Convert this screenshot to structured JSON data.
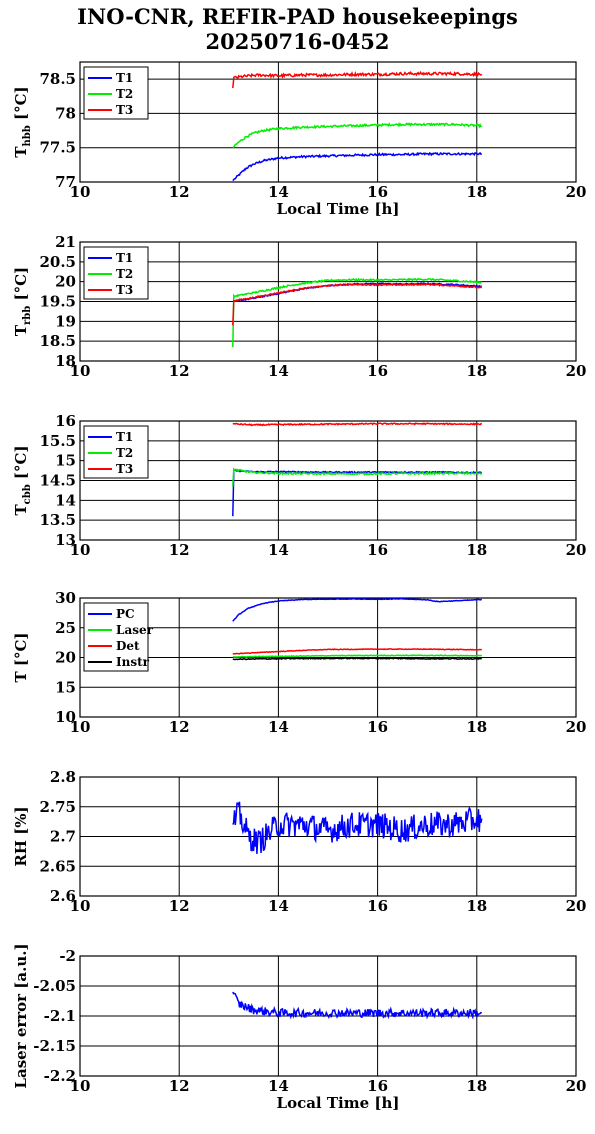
{
  "title_line1": "INO-CNR, REFIR-PAD housekeepings",
  "title_line2": "20250716-0452",
  "chart_data": [
    {
      "type": "line",
      "ylabel": "T",
      "ylabel_sub": "hbb",
      "ylabel_unit": "[°C]",
      "xlabel": "Local Time [h]",
      "xlim": [
        10,
        20
      ],
      "ylim": [
        77,
        78.75
      ],
      "xticks": [
        "10",
        "12",
        "14",
        "16",
        "18",
        "20"
      ],
      "yticks": [
        {
          "v": 77,
          "label": "77"
        },
        {
          "v": 77.5,
          "label": "77.5"
        },
        {
          "v": 78,
          "label": "78"
        },
        {
          "v": 78.5,
          "label": "78.5"
        }
      ],
      "grid": true,
      "legend": "top-left",
      "series": [
        {
          "name": "T1",
          "color": "#0000ff",
          "noise": 0.015,
          "points": [
            [
              13.08,
              77.02
            ],
            [
              13.2,
              77.1
            ],
            [
              13.35,
              77.2
            ],
            [
              13.5,
              77.26
            ],
            [
              13.7,
              77.31
            ],
            [
              14,
              77.35
            ],
            [
              14.5,
              77.37
            ],
            [
              15,
              77.38
            ],
            [
              15.5,
              77.39
            ],
            [
              16,
              77.4
            ],
            [
              16.5,
              77.4
            ],
            [
              17,
              77.41
            ],
            [
              17.5,
              77.41
            ],
            [
              18.1,
              77.41
            ]
          ]
        },
        {
          "name": "T2",
          "color": "#00ee00",
          "noise": 0.015,
          "points": [
            [
              13.08,
              77.5
            ],
            [
              13.2,
              77.58
            ],
            [
              13.35,
              77.66
            ],
            [
              13.5,
              77.71
            ],
            [
              13.7,
              77.75
            ],
            [
              14,
              77.78
            ],
            [
              14.5,
              77.8
            ],
            [
              15,
              77.81
            ],
            [
              15.5,
              77.82
            ],
            [
              16,
              77.83
            ],
            [
              16.5,
              77.84
            ],
            [
              17,
              77.84
            ],
            [
              17.5,
              77.84
            ],
            [
              18.1,
              77.82
            ]
          ]
        },
        {
          "name": "T3",
          "color": "#ff0000",
          "noise": 0.02,
          "points": [
            [
              13.08,
              78.37
            ],
            [
              13.1,
              78.52
            ],
            [
              13.3,
              78.54
            ],
            [
              13.6,
              78.56
            ],
            [
              14,
              78.55
            ],
            [
              14.5,
              78.56
            ],
            [
              15,
              78.56
            ],
            [
              15.5,
              78.57
            ],
            [
              16,
              78.57
            ],
            [
              16.5,
              78.58
            ],
            [
              17,
              78.58
            ],
            [
              17.5,
              78.58
            ],
            [
              18.1,
              78.57
            ]
          ]
        }
      ]
    },
    {
      "type": "line",
      "ylabel": "T",
      "ylabel_sub": "rbb",
      "ylabel_unit": "[°C]",
      "xlabel": "",
      "xlim": [
        10,
        20
      ],
      "ylim": [
        18,
        21
      ],
      "xticks": [
        "10",
        "12",
        "14",
        "16",
        "18",
        "20"
      ],
      "yticks": [
        {
          "v": 18,
          "label": "18"
        },
        {
          "v": 18.5,
          "label": "18.5"
        },
        {
          "v": 19,
          "label": "19"
        },
        {
          "v": 19.5,
          "label": "19.5"
        },
        {
          "v": 20,
          "label": "20"
        },
        {
          "v": 20.5,
          "label": "20.5"
        },
        {
          "v": 21,
          "label": "21"
        }
      ],
      "grid": true,
      "legend": "top-left",
      "series": [
        {
          "name": "T1",
          "color": "#0000ff",
          "noise": 0.015,
          "points": [
            [
              13.08,
              19.5
            ],
            [
              13.5,
              19.58
            ],
            [
              14,
              19.7
            ],
            [
              14.5,
              19.82
            ],
            [
              15,
              19.9
            ],
            [
              15.5,
              19.94
            ],
            [
              16,
              19.95
            ],
            [
              16.5,
              19.94
            ],
            [
              17,
              19.95
            ],
            [
              17.5,
              19.93
            ],
            [
              18.1,
              19.88
            ]
          ]
        },
        {
          "name": "T2",
          "color": "#00ee00",
          "noise": 0.02,
          "points": [
            [
              13.08,
              18.35
            ],
            [
              13.1,
              19.63
            ],
            [
              13.5,
              19.72
            ],
            [
              14,
              19.85
            ],
            [
              14.5,
              19.96
            ],
            [
              15,
              20.03
            ],
            [
              15.5,
              20.05
            ],
            [
              16,
              20.04
            ],
            [
              16.5,
              20.05
            ],
            [
              17,
              20.06
            ],
            [
              17.5,
              20.03
            ],
            [
              18.1,
              19.98
            ]
          ]
        },
        {
          "name": "T3",
          "color": "#ff0000",
          "noise": 0.015,
          "points": [
            [
              13.08,
              18.9
            ],
            [
              13.1,
              19.52
            ],
            [
              13.5,
              19.6
            ],
            [
              14,
              19.72
            ],
            [
              14.5,
              19.83
            ],
            [
              15,
              19.9
            ],
            [
              15.5,
              19.93
            ],
            [
              16,
              19.92
            ],
            [
              16.5,
              19.92
            ],
            [
              17,
              19.93
            ],
            [
              17.5,
              19.9
            ],
            [
              18.1,
              19.85
            ]
          ]
        }
      ]
    },
    {
      "type": "line",
      "ylabel": "T",
      "ylabel_sub": "cbb",
      "ylabel_unit": "[°C]",
      "xlabel": "",
      "xlim": [
        10,
        20
      ],
      "ylim": [
        13,
        16
      ],
      "xticks": [
        "10",
        "12",
        "14",
        "16",
        "18",
        "20"
      ],
      "yticks": [
        {
          "v": 13,
          "label": "13"
        },
        {
          "v": 13.5,
          "label": "13.5"
        },
        {
          "v": 14,
          "label": "14"
        },
        {
          "v": 14.5,
          "label": "14.5"
        },
        {
          "v": 15,
          "label": "15"
        },
        {
          "v": 15.5,
          "label": "15.5"
        },
        {
          "v": 16,
          "label": "16"
        }
      ],
      "grid": true,
      "legend": "top-left",
      "series": [
        {
          "name": "T1",
          "color": "#0000ff",
          "noise": 0.015,
          "points": [
            [
              13.08,
              13.6
            ],
            [
              13.1,
              14.75
            ],
            [
              13.5,
              14.72
            ],
            [
              14,
              14.72
            ],
            [
              15,
              14.71
            ],
            [
              16,
              14.71
            ],
            [
              17,
              14.71
            ],
            [
              18.1,
              14.7
            ]
          ]
        },
        {
          "name": "T2",
          "color": "#00ee00",
          "noise": 0.02,
          "points": [
            [
              13.08,
              14.35
            ],
            [
              13.1,
              14.78
            ],
            [
              13.5,
              14.7
            ],
            [
              14,
              14.68
            ],
            [
              15,
              14.67
            ],
            [
              16,
              14.67
            ],
            [
              17,
              14.68
            ],
            [
              18.1,
              14.68
            ]
          ]
        },
        {
          "name": "T3",
          "color": "#ff0000",
          "noise": 0.015,
          "points": [
            [
              13.08,
              15.93
            ],
            [
              13.5,
              15.9
            ],
            [
              14,
              15.91
            ],
            [
              15,
              15.92
            ],
            [
              16,
              15.93
            ],
            [
              17,
              15.93
            ],
            [
              18.1,
              15.92
            ]
          ]
        }
      ]
    },
    {
      "type": "line",
      "ylabel": "T [°C]",
      "ylabel_sub": "",
      "ylabel_unit": "",
      "xlabel": "",
      "xlim": [
        10,
        20
      ],
      "ylim": [
        10,
        30
      ],
      "xticks": [
        "10",
        "12",
        "14",
        "16",
        "18",
        "20"
      ],
      "yticks": [
        {
          "v": 10,
          "label": "10"
        },
        {
          "v": 15,
          "label": "15"
        },
        {
          "v": 20,
          "label": "20"
        },
        {
          "v": 25,
          "label": "25"
        },
        {
          "v": 30,
          "label": "30"
        }
      ],
      "grid": true,
      "legend": "top-left",
      "series": [
        {
          "name": "PC",
          "color": "#0000ff",
          "noise": 0.05,
          "points": [
            [
              13.08,
              26.1
            ],
            [
              13.2,
              27.2
            ],
            [
              13.4,
              28.3
            ],
            [
              13.7,
              29.1
            ],
            [
              14,
              29.5
            ],
            [
              14.5,
              29.75
            ],
            [
              15,
              29.8
            ],
            [
              15.5,
              29.85
            ],
            [
              16,
              29.8
            ],
            [
              16.5,
              29.85
            ],
            [
              17,
              29.7
            ],
            [
              17.2,
              29.4
            ],
            [
              17.5,
              29.5
            ],
            [
              18,
              29.7
            ],
            [
              18.1,
              29.75
            ]
          ]
        },
        {
          "name": "Laser",
          "color": "#00ee00",
          "noise": 0.05,
          "points": [
            [
              13.08,
              20.1
            ],
            [
              14,
              20.2
            ],
            [
              15,
              20.3
            ],
            [
              16,
              20.35
            ],
            [
              17,
              20.35
            ],
            [
              18.1,
              20.3
            ]
          ]
        },
        {
          "name": "Det",
          "color": "#ff0000",
          "noise": 0.05,
          "points": [
            [
              13.08,
              20.6
            ],
            [
              13.5,
              20.8
            ],
            [
              14,
              21
            ],
            [
              14.5,
              21.2
            ],
            [
              15,
              21.35
            ],
            [
              16,
              21.4
            ],
            [
              17,
              21.4
            ],
            [
              18.1,
              21.3
            ]
          ]
        },
        {
          "name": "Instr",
          "color": "#000000",
          "noise": 0.08,
          "points": [
            [
              13.08,
              19.7
            ],
            [
              14,
              19.8
            ],
            [
              15,
              19.85
            ],
            [
              16,
              19.85
            ],
            [
              17,
              19.8
            ],
            [
              18.1,
              19.8
            ]
          ]
        }
      ]
    },
    {
      "type": "line",
      "ylabel": "RH [%]",
      "ylabel_sub": "",
      "ylabel_unit": "",
      "xlabel": "",
      "xlim": [
        10,
        20
      ],
      "ylim": [
        2.6,
        2.8
      ],
      "xticks": [
        "10",
        "12",
        "14",
        "16",
        "18",
        "20"
      ],
      "yticks": [
        {
          "v": 2.6,
          "label": "2.6"
        },
        {
          "v": 2.65,
          "label": "2.65"
        },
        {
          "v": 2.7,
          "label": "2.7"
        },
        {
          "v": 2.75,
          "label": "2.75"
        },
        {
          "v": 2.8,
          "label": "2.8"
        }
      ],
      "grid": true,
      "legend": "",
      "series": [
        {
          "name": "",
          "color": "#0000ff",
          "noise": 0.022,
          "points": [
            [
              13.08,
              2.72
            ],
            [
              13.2,
              2.74
            ],
            [
              13.4,
              2.7
            ],
            [
              13.6,
              2.69
            ],
            [
              14,
              2.72
            ],
            [
              14.5,
              2.72
            ],
            [
              15,
              2.71
            ],
            [
              15.5,
              2.72
            ],
            [
              16,
              2.72
            ],
            [
              16.5,
              2.71
            ],
            [
              17,
              2.72
            ],
            [
              17.5,
              2.72
            ],
            [
              18.1,
              2.73
            ]
          ]
        }
      ]
    },
    {
      "type": "line",
      "ylabel": "Laser error [a.u.]",
      "ylabel_sub": "",
      "ylabel_unit": "",
      "xlabel": "Local Time [h]",
      "xlim": [
        10,
        20
      ],
      "ylim": [
        -2.2,
        -2
      ],
      "xticks": [
        "10",
        "12",
        "14",
        "16",
        "18",
        "20"
      ],
      "yticks": [
        {
          "v": -2.2,
          "label": "-2.2"
        },
        {
          "v": -2.15,
          "label": "-2.15"
        },
        {
          "v": -2.1,
          "label": "-2.1"
        },
        {
          "v": -2.05,
          "label": "-2.05"
        },
        {
          "v": -2,
          "label": "-2"
        }
      ],
      "grid": true,
      "legend": "",
      "series": [
        {
          "name": "",
          "color": "#0000ff",
          "noise": 0.007,
          "points": [
            [
              13.08,
              -2.06
            ],
            [
              13.2,
              -2.08
            ],
            [
              13.5,
              -2.09
            ],
            [
              14,
              -2.095
            ],
            [
              15,
              -2.095
            ],
            [
              16,
              -2.095
            ],
            [
              17,
              -2.095
            ],
            [
              18.1,
              -2.095
            ]
          ]
        }
      ]
    }
  ]
}
